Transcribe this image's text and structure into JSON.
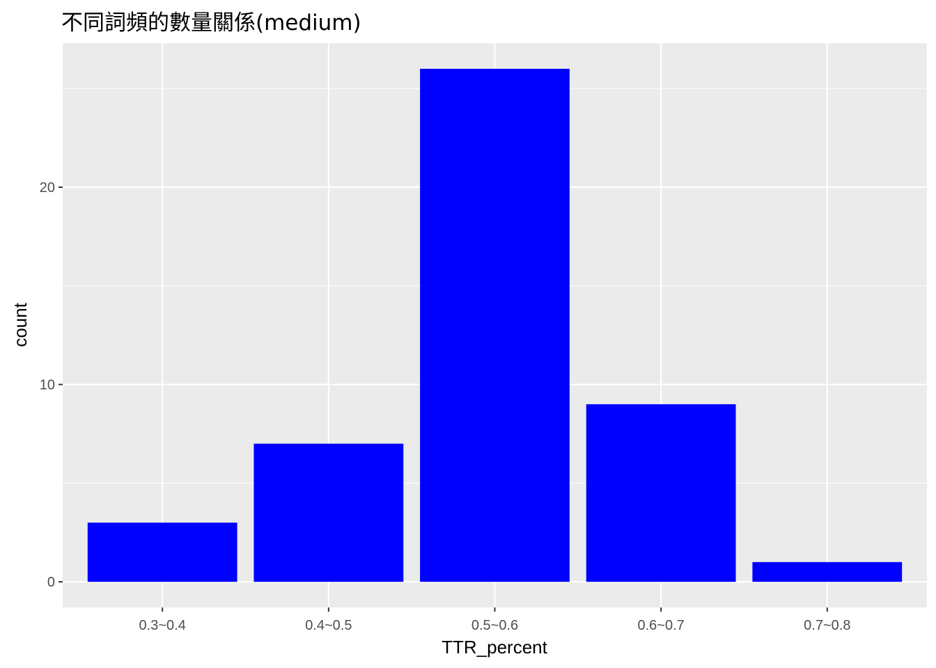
{
  "chart_data": {
    "type": "bar",
    "title": "不同詞頻的數量關係(medium)",
    "xlabel": "TTR_percent",
    "ylabel": "count",
    "categories": [
      "0.3~0.4",
      "0.4~0.5",
      "0.5~0.6",
      "0.6~0.7",
      "0.7~0.8"
    ],
    "values": [
      3,
      7,
      26,
      9,
      1
    ],
    "ylim": [
      -1.3,
      27.3
    ],
    "yticks": [
      0,
      10,
      20
    ],
    "yticks_minor": [
      5,
      15,
      25
    ],
    "grid": true,
    "bar_color": "#0000FF",
    "panel_color": "#EBEBEB",
    "grid_color": "#FFFFFF"
  }
}
